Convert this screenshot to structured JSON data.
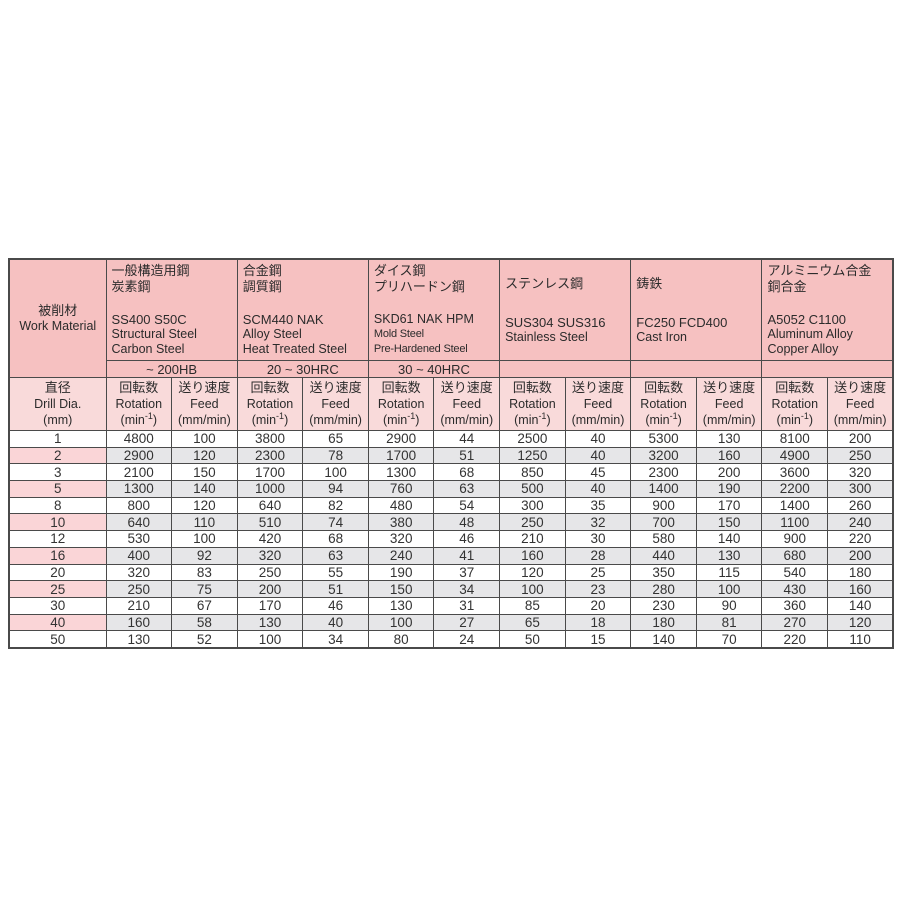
{
  "colors": {
    "header_pink": "#f6c1c1",
    "subheader_pink": "#f9dada",
    "alt_row_pink": "#fad5d7",
    "alt_row_gray": "#e6e6e8",
    "border": "#4a4a4a",
    "page_background": "#ffffff"
  },
  "table": {
    "work_material_header": {
      "ja": "被削材",
      "en": "Work Material"
    },
    "drill_dia_header": {
      "ja": "直径",
      "en": "Drill Dia.",
      "unit": "(mm)"
    },
    "sub_headers": {
      "rotation_ja": "回転数",
      "rotation_en": "Rotation",
      "rotation_unit": {
        "pre": "(min",
        "sup": "-1",
        "post": ")"
      },
      "feed_ja": "送り速度",
      "feed_en": "Feed",
      "feed_unit": "(mm/min)"
    },
    "materials": [
      {
        "id": "structural-steel",
        "ja_lines": [
          "一般構造用鋼",
          "炭素鋼"
        ],
        "codes": "SS400 S50C",
        "en_lines": [
          "Structural Steel",
          "Carbon Steel"
        ],
        "hardness": "~ 200HB"
      },
      {
        "id": "alloy-steel",
        "ja_lines": [
          "合金鋼",
          "調質鋼"
        ],
        "codes": "SCM440 NAK",
        "en_lines": [
          "Alloy Steel",
          "Heat Treated Steel"
        ],
        "hardness": "20 ~ 30HRC"
      },
      {
        "id": "mold-steel",
        "ja_lines": [
          "ダイス鋼",
          "プリハードン鋼"
        ],
        "codes": "SKD61 NAK HPM",
        "en_lines": [
          "Mold Steel",
          "Pre-Hardened Steel"
        ],
        "hardness": "30 ~ 40HRC"
      },
      {
        "id": "stainless-steel",
        "ja_lines": [
          "ステンレス鋼"
        ],
        "codes": "SUS304 SUS316",
        "en_lines": [
          "Stainless Steel"
        ],
        "hardness": ""
      },
      {
        "id": "cast-iron",
        "ja_lines": [
          "鋳鉄"
        ],
        "codes": "FC250  FCD400",
        "en_lines": [
          "Cast Iron"
        ],
        "hardness": ""
      },
      {
        "id": "aluminum-copper",
        "ja_lines": [
          "アルミニウム合金",
          "銅合金"
        ],
        "codes": "A5052 C1100",
        "en_lines": [
          "Aluminum Alloy",
          "Copper Alloy"
        ],
        "hardness": ""
      }
    ],
    "rows": [
      {
        "dia": "1",
        "values": [
          "4800",
          "100",
          "3800",
          "65",
          "2900",
          "44",
          "2500",
          "40",
          "5300",
          "130",
          "8100",
          "200"
        ]
      },
      {
        "dia": "2",
        "values": [
          "2900",
          "120",
          "2300",
          "78",
          "1700",
          "51",
          "1250",
          "40",
          "3200",
          "160",
          "4900",
          "250"
        ]
      },
      {
        "dia": "3",
        "values": [
          "2100",
          "150",
          "1700",
          "100",
          "1300",
          "68",
          "850",
          "45",
          "2300",
          "200",
          "3600",
          "320"
        ]
      },
      {
        "dia": "5",
        "values": [
          "1300",
          "140",
          "1000",
          "94",
          "760",
          "63",
          "500",
          "40",
          "1400",
          "190",
          "2200",
          "300"
        ]
      },
      {
        "dia": "8",
        "values": [
          "800",
          "120",
          "640",
          "82",
          "480",
          "54",
          "300",
          "35",
          "900",
          "170",
          "1400",
          "260"
        ]
      },
      {
        "dia": "10",
        "values": [
          "640",
          "110",
          "510",
          "74",
          "380",
          "48",
          "250",
          "32",
          "700",
          "150",
          "1100",
          "240"
        ]
      },
      {
        "dia": "12",
        "values": [
          "530",
          "100",
          "420",
          "68",
          "320",
          "46",
          "210",
          "30",
          "580",
          "140",
          "900",
          "220"
        ]
      },
      {
        "dia": "16",
        "values": [
          "400",
          "92",
          "320",
          "63",
          "240",
          "41",
          "160",
          "28",
          "440",
          "130",
          "680",
          "200"
        ]
      },
      {
        "dia": "20",
        "values": [
          "320",
          "83",
          "250",
          "55",
          "190",
          "37",
          "120",
          "25",
          "350",
          "115",
          "540",
          "180"
        ]
      },
      {
        "dia": "25",
        "values": [
          "250",
          "75",
          "200",
          "51",
          "150",
          "34",
          "100",
          "23",
          "280",
          "100",
          "430",
          "160"
        ]
      },
      {
        "dia": "30",
        "values": [
          "210",
          "67",
          "170",
          "46",
          "130",
          "31",
          "85",
          "20",
          "230",
          "90",
          "360",
          "140"
        ]
      },
      {
        "dia": "40",
        "values": [
          "160",
          "58",
          "130",
          "40",
          "100",
          "27",
          "65",
          "18",
          "180",
          "81",
          "270",
          "120"
        ]
      },
      {
        "dia": "50",
        "values": [
          "130",
          "52",
          "100",
          "34",
          "80",
          "24",
          "50",
          "15",
          "140",
          "70",
          "220",
          "110"
        ]
      }
    ]
  }
}
